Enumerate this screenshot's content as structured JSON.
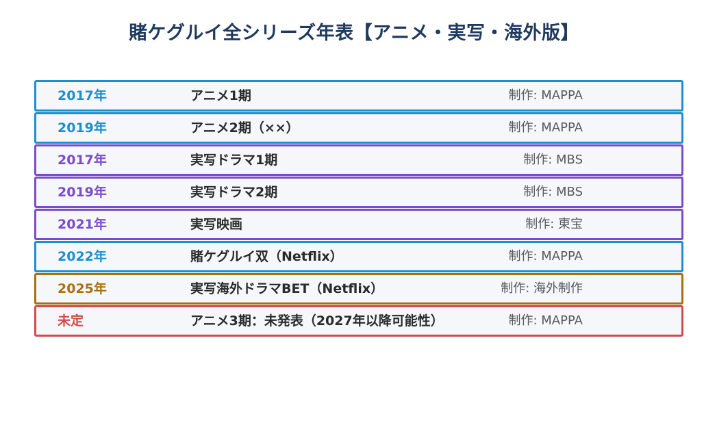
{
  "title": "賭ケグルイ全シリーズ年表【アニメ・実写・海外版】",
  "rows": [
    {
      "year": "2017年",
      "event": "アニメ1期",
      "studio": "制作: MAPPA",
      "color": "#1b8fd0"
    },
    {
      "year": "2019年",
      "event": "アニメ2期（××）",
      "studio": "制作: MAPPA",
      "color": "#1b8fd0"
    },
    {
      "year": "2017年",
      "event": "実写ドラマ1期",
      "studio": "制作: MBS",
      "color": "#7a4ccc"
    },
    {
      "year": "2019年",
      "event": "実写ドラマ2期",
      "studio": "制作: MBS",
      "color": "#7a4ccc"
    },
    {
      "year": "2021年",
      "event": "実写映画",
      "studio": "制作: 東宝",
      "color": "#7a4ccc"
    },
    {
      "year": "2022年",
      "event": "賭ケグルイ双（Netflix）",
      "studio": "制作: MAPPA",
      "color": "#1b8fd0"
    },
    {
      "year": "2025年",
      "event": "実写海外ドラマBET（Netflix）",
      "studio": "制作: 海外制作",
      "color": "#a8700c"
    },
    {
      "year": "未定",
      "event": "アニメ3期：未発表（2027年以降可能性）",
      "studio": "制作: MAPPA",
      "color": "#d24b4b"
    }
  ]
}
